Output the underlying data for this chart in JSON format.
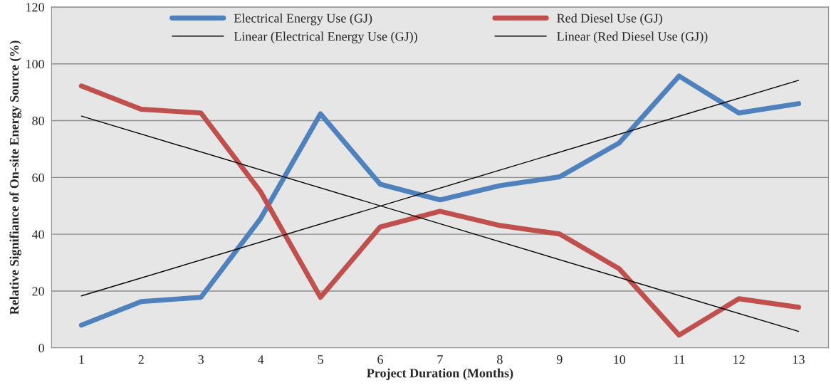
{
  "chart_data": {
    "type": "line",
    "xlabel": "Project Duration (Months)",
    "ylabel": "Relative Signifiance of On-site Energy Source (%)",
    "categories": [
      "1",
      "2",
      "3",
      "4",
      "5",
      "6",
      "7",
      "8",
      "9",
      "10",
      "11",
      "12",
      "13"
    ],
    "series": [
      {
        "name": "Electrical Energy Use (GJ)",
        "color": "#4f81bd",
        "values": [
          8.0,
          16.3,
          17.8,
          45.6,
          82.4,
          57.6,
          52.1,
          57.1,
          60.2,
          72.2,
          95.7,
          82.7,
          86.0
        ]
      },
      {
        "name": "Red Diesel Use (GJ)",
        "color": "#c0504d",
        "values": [
          92.2,
          84.0,
          82.7,
          54.9,
          17.8,
          42.6,
          48.1,
          43.1,
          40.1,
          27.8,
          4.5,
          17.3,
          14.3
        ]
      },
      {
        "name": "Linear (Electrical Energy Use (GJ))",
        "color": "#000000",
        "x": [
          "1",
          "13"
        ],
        "values": [
          18.3,
          94.2
        ]
      },
      {
        "name": "Linear (Red Diesel Use (GJ))",
        "color": "#000000",
        "x": [
          "1",
          "13"
        ],
        "values": [
          81.6,
          5.8
        ]
      }
    ],
    "ylim": [
      0,
      120
    ],
    "yticks": [
      0,
      20,
      40,
      60,
      80,
      100,
      120
    ],
    "grid": "y",
    "legend": "top",
    "marker": "none",
    "line_style": "solid"
  }
}
